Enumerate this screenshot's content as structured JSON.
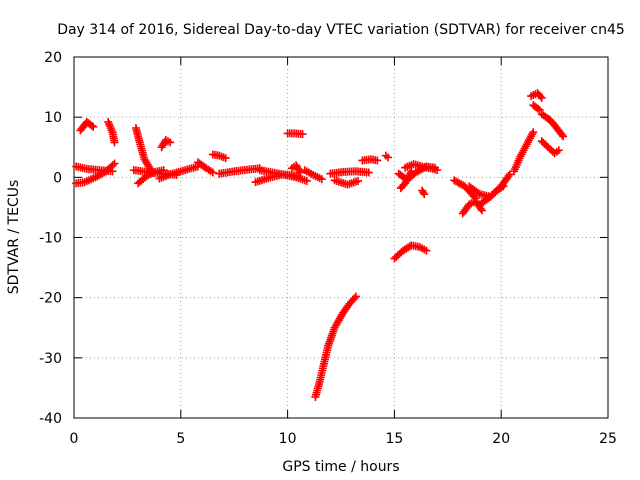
{
  "chart_data": {
    "type": "scatter",
    "title": "Day 314 of 2016, Sidereal Day-to-day VTEC variation (SDTVAR) for receiver cn45",
    "xlabel": "GPS time / hours",
    "ylabel": "SDTVAR / TECUs",
    "xlim": [
      0,
      25
    ],
    "ylim": [
      -40,
      20
    ],
    "xticks": [
      0,
      5,
      10,
      15,
      20,
      25
    ],
    "yticks": [
      -40,
      -30,
      -20,
      -10,
      0,
      10,
      20
    ],
    "grid": true,
    "marker": "plus",
    "color": "#ff0000",
    "segments": [
      {
        "x": [
          0.1,
          0.5,
          1.0,
          1.5,
          1.9
        ],
        "y": [
          -1.0,
          -0.8,
          0.0,
          1.0,
          2.3
        ]
      },
      {
        "x": [
          0.1,
          0.6,
          1.2,
          1.8
        ],
        "y": [
          1.8,
          1.4,
          1.2,
          1.0
        ]
      },
      {
        "x": [
          0.3,
          0.6,
          0.9
        ],
        "y": [
          7.8,
          9.2,
          8.4
        ]
      },
      {
        "x": [
          1.6,
          1.8,
          1.9
        ],
        "y": [
          9.2,
          7.5,
          5.8
        ]
      },
      {
        "x": [
          2.9,
          3.1,
          3.3,
          3.6
        ],
        "y": [
          8.2,
          5.5,
          3.0,
          1.2
        ]
      },
      {
        "x": [
          3.0,
          3.4,
          3.8,
          4.2
        ],
        "y": [
          -1.0,
          0.2,
          0.9,
          1.2
        ]
      },
      {
        "x": [
          2.8,
          3.4,
          4.2,
          4.8
        ],
        "y": [
          1.2,
          0.9,
          0.6,
          0.4
        ]
      },
      {
        "x": [
          4.0,
          4.5,
          5.2,
          5.8
        ],
        "y": [
          -0.2,
          0.5,
          1.2,
          1.8
        ]
      },
      {
        "x": [
          4.1,
          4.3,
          4.5
        ],
        "y": [
          5.0,
          6.2,
          5.8
        ]
      },
      {
        "x": [
          5.8,
          6.2,
          6.5
        ],
        "y": [
          2.5,
          1.5,
          0.8
        ]
      },
      {
        "x": [
          6.5,
          6.8,
          7.1
        ],
        "y": [
          3.8,
          3.6,
          3.2
        ]
      },
      {
        "x": [
          6.8,
          7.5,
          8.2,
          8.7
        ],
        "y": [
          0.6,
          1.0,
          1.3,
          1.5
        ]
      },
      {
        "x": [
          8.5,
          9.2,
          9.8,
          10.5
        ],
        "y": [
          -0.8,
          0.0,
          0.5,
          0.2
        ]
      },
      {
        "x": [
          8.7,
          9.6,
          10.4,
          10.9
        ],
        "y": [
          1.2,
          0.6,
          0.0,
          -0.6
        ]
      },
      {
        "x": [
          10.0,
          10.3,
          10.7
        ],
        "y": [
          7.3,
          7.3,
          7.2
        ]
      },
      {
        "x": [
          10.2,
          10.4,
          10.6
        ],
        "y": [
          1.5,
          2.0,
          0.8
        ]
      },
      {
        "x": [
          10.8,
          11.2,
          11.6
        ],
        "y": [
          1.2,
          0.4,
          -0.3
        ]
      },
      {
        "x": [
          12.0,
          12.6,
          13.2,
          13.8
        ],
        "y": [
          0.6,
          0.9,
          1.0,
          0.8
        ]
      },
      {
        "x": [
          12.2,
          12.8,
          13.3
        ],
        "y": [
          -0.5,
          -1.2,
          -0.6
        ]
      },
      {
        "x": [
          13.5,
          13.9,
          14.2
        ],
        "y": [
          2.8,
          3.0,
          2.8
        ]
      },
      {
        "x": [
          14.6,
          14.7
        ],
        "y": [
          3.6,
          3.3
        ]
      },
      {
        "x": [
          11.3,
          11.5,
          11.7,
          11.9,
          12.2,
          12.6,
          12.9,
          13.2
        ],
        "y": [
          -36.5,
          -34.0,
          -31.0,
          -28.0,
          -25.0,
          -22.5,
          -21.0,
          -19.8
        ]
      },
      {
        "x": [
          15.0,
          15.4,
          15.8,
          16.2,
          16.5
        ],
        "y": [
          -13.5,
          -12.2,
          -11.3,
          -11.6,
          -12.2
        ]
      },
      {
        "x": [
          15.3,
          15.5,
          15.8
        ],
        "y": [
          -1.8,
          -1.0,
          1.0
        ]
      },
      {
        "x": [
          15.2,
          15.6,
          16.0,
          16.5,
          16.9
        ],
        "y": [
          0.6,
          -0.4,
          0.8,
          1.8,
          1.6
        ]
      },
      {
        "x": [
          15.5,
          15.9,
          16.3,
          16.8,
          17.0
        ],
        "y": [
          1.6,
          2.2,
          1.8,
          1.4,
          1.2
        ]
      },
      {
        "x": [
          16.3,
          16.4
        ],
        "y": [
          -2.2,
          -2.8
        ]
      },
      {
        "x": [
          17.8,
          18.3,
          18.8
        ],
        "y": [
          -0.5,
          -1.5,
          -3.5
        ]
      },
      {
        "x": [
          18.2,
          18.5,
          18.8,
          19.1
        ],
        "y": [
          -6.0,
          -4.5,
          -4.0,
          -5.5
        ]
      },
      {
        "x": [
          18.5,
          19.0,
          19.5,
          20.0,
          20.4
        ],
        "y": [
          -1.5,
          -2.8,
          -3.2,
          -1.5,
          0.5
        ]
      },
      {
        "x": [
          19.0,
          19.4,
          19.8,
          20.1
        ],
        "y": [
          -4.5,
          -3.5,
          -2.2,
          -1.5
        ]
      },
      {
        "x": [
          20.6,
          20.9,
          21.2,
          21.5
        ],
        "y": [
          1.0,
          3.5,
          5.5,
          7.5
        ]
      },
      {
        "x": [
          21.4,
          21.7,
          21.9
        ],
        "y": [
          13.5,
          14.0,
          13.2
        ]
      },
      {
        "x": [
          21.5,
          21.8
        ],
        "y": [
          12.0,
          11.2
        ]
      },
      {
        "x": [
          21.9,
          22.3,
          22.6,
          22.9
        ],
        "y": [
          10.5,
          9.5,
          8.2,
          6.8
        ]
      },
      {
        "x": [
          21.9,
          22.2,
          22.5,
          22.7
        ],
        "y": [
          6.0,
          5.0,
          4.0,
          4.5
        ]
      }
    ]
  }
}
